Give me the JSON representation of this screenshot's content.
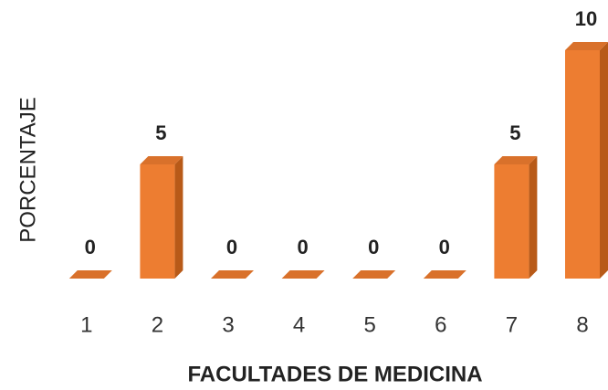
{
  "chart_data": {
    "type": "bar3d",
    "categories": [
      "1",
      "2",
      "3",
      "4",
      "5",
      "6",
      "7",
      "8"
    ],
    "values": [
      0,
      5,
      0,
      0,
      0,
      0,
      5,
      10
    ],
    "color": "#ed7d31",
    "ylim": [
      0,
      10
    ],
    "xlabel": "FACULTADES DE MEDICINA",
    "ylabel": "PORCENTAJE"
  }
}
